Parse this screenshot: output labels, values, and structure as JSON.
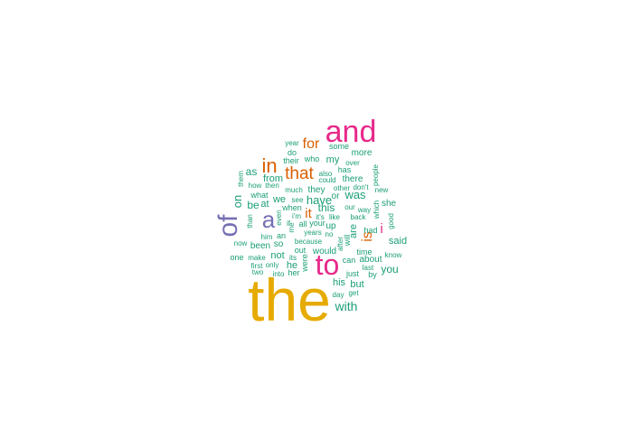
{
  "palette": {
    "teal": "#1b9e77",
    "orange": "#d95f02",
    "purple": "#7570b3",
    "magenta": "#e7298a",
    "gold": "#e6ab02"
  },
  "words": [
    {
      "text": "the",
      "color": "gold"
    },
    {
      "text": "and",
      "color": "magenta"
    },
    {
      "text": "to",
      "color": "magenta"
    },
    {
      "text": "of",
      "color": "purple"
    },
    {
      "text": "a",
      "color": "purple"
    },
    {
      "text": "in",
      "color": "orange"
    },
    {
      "text": "that",
      "color": "orange"
    },
    {
      "text": "for",
      "color": "orange"
    },
    {
      "text": "is",
      "color": "orange"
    },
    {
      "text": "it",
      "color": "orange"
    },
    {
      "text": "i",
      "color": "magenta"
    },
    {
      "text": "with",
      "color": "teal"
    },
    {
      "text": "was",
      "color": "teal"
    },
    {
      "text": "have",
      "color": "teal"
    },
    {
      "text": "on",
      "color": "teal"
    },
    {
      "text": "said",
      "color": "teal"
    },
    {
      "text": "you",
      "color": "teal"
    },
    {
      "text": "be",
      "color": "teal"
    },
    {
      "text": "as",
      "color": "teal"
    },
    {
      "text": "this",
      "color": "teal"
    },
    {
      "text": "he",
      "color": "teal"
    },
    {
      "text": "are",
      "color": "teal"
    },
    {
      "text": "his",
      "color": "teal"
    },
    {
      "text": "but",
      "color": "teal"
    },
    {
      "text": "my",
      "color": "teal"
    },
    {
      "text": "from",
      "color": "teal"
    },
    {
      "text": "at",
      "color": "teal"
    },
    {
      "text": "we",
      "color": "teal"
    },
    {
      "text": "they",
      "color": "teal"
    },
    {
      "text": "not",
      "color": "teal"
    },
    {
      "text": "there",
      "color": "teal"
    },
    {
      "text": "or",
      "color": "teal"
    },
    {
      "text": "more",
      "color": "teal"
    },
    {
      "text": "some",
      "color": "teal"
    },
    {
      "text": "who",
      "color": "teal"
    },
    {
      "text": "their",
      "color": "teal"
    },
    {
      "text": "do",
      "color": "teal"
    },
    {
      "text": "year",
      "color": "teal"
    },
    {
      "text": "has",
      "color": "teal"
    },
    {
      "text": "also",
      "color": "teal"
    },
    {
      "text": "could",
      "color": "teal"
    },
    {
      "text": "over",
      "color": "teal"
    },
    {
      "text": "people",
      "color": "teal"
    },
    {
      "text": "them",
      "color": "teal"
    },
    {
      "text": "how",
      "color": "teal"
    },
    {
      "text": "then",
      "color": "teal"
    },
    {
      "text": "what",
      "color": "teal"
    },
    {
      "text": "much",
      "color": "teal"
    },
    {
      "text": "other",
      "color": "teal"
    },
    {
      "text": "don't",
      "color": "teal"
    },
    {
      "text": "new",
      "color": "teal"
    },
    {
      "text": "she",
      "color": "teal"
    },
    {
      "text": "which",
      "color": "teal"
    },
    {
      "text": "than",
      "color": "teal"
    },
    {
      "text": "even",
      "color": "teal"
    },
    {
      "text": "i'm",
      "color": "teal"
    },
    {
      "text": "when",
      "color": "teal"
    },
    {
      "text": "see",
      "color": "teal"
    },
    {
      "text": "our",
      "color": "teal"
    },
    {
      "text": "way",
      "color": "teal"
    },
    {
      "text": "it's",
      "color": "teal"
    },
    {
      "text": "like",
      "color": "teal"
    },
    {
      "text": "back",
      "color": "teal"
    },
    {
      "text": "good",
      "color": "teal"
    },
    {
      "text": "if",
      "color": "teal"
    },
    {
      "text": "all",
      "color": "teal"
    },
    {
      "text": "your",
      "color": "teal"
    },
    {
      "text": "up",
      "color": "teal"
    },
    {
      "text": "me",
      "color": "teal"
    },
    {
      "text": "only",
      "color": "teal"
    },
    {
      "text": "years",
      "color": "teal"
    },
    {
      "text": "no",
      "color": "teal"
    },
    {
      "text": "him",
      "color": "teal"
    },
    {
      "text": "an",
      "color": "teal"
    },
    {
      "text": "will",
      "color": "teal"
    },
    {
      "text": "had",
      "color": "teal"
    },
    {
      "text": "now",
      "color": "teal"
    },
    {
      "text": "been",
      "color": "teal"
    },
    {
      "text": "so",
      "color": "teal"
    },
    {
      "text": "because",
      "color": "teal"
    },
    {
      "text": "would",
      "color": "teal"
    },
    {
      "text": "after",
      "color": "teal"
    },
    {
      "text": "one",
      "color": "teal"
    },
    {
      "text": "make",
      "color": "teal"
    },
    {
      "text": "its",
      "color": "teal"
    },
    {
      "text": "out",
      "color": "teal"
    },
    {
      "text": "were",
      "color": "teal"
    },
    {
      "text": "time",
      "color": "teal"
    },
    {
      "text": "know",
      "color": "teal"
    },
    {
      "text": "can",
      "color": "teal"
    },
    {
      "text": "about",
      "color": "teal"
    },
    {
      "text": "first",
      "color": "teal"
    },
    {
      "text": "last",
      "color": "teal"
    },
    {
      "text": "two",
      "color": "teal"
    },
    {
      "text": "into",
      "color": "teal"
    },
    {
      "text": "her",
      "color": "teal"
    },
    {
      "text": "just",
      "color": "teal"
    },
    {
      "text": "by",
      "color": "teal"
    },
    {
      "text": "day",
      "color": "teal"
    },
    {
      "text": "get",
      "color": "teal"
    }
  ]
}
